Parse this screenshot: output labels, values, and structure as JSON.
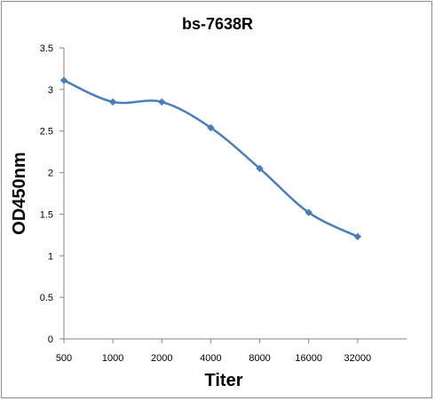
{
  "chart_data": {
    "type": "line",
    "title": "bs-7638R",
    "xlabel": "Titer",
    "ylabel": "OD450nm",
    "categories": [
      "500",
      "1000",
      "2000",
      "4000",
      "8000",
      "16000",
      "32000"
    ],
    "series": [
      {
        "values": [
          3.11,
          2.85,
          2.85,
          2.54,
          2.05,
          1.52,
          1.23
        ]
      }
    ],
    "ylim": [
      0,
      3.5
    ],
    "yticks": [
      "0",
      "0.5",
      "1",
      "1.5",
      "2",
      "2.5",
      "3",
      "3.5"
    ],
    "grid": false,
    "legend": "none",
    "smooth": true,
    "marker": "diamond",
    "line_color": "#4a7ebb"
  }
}
